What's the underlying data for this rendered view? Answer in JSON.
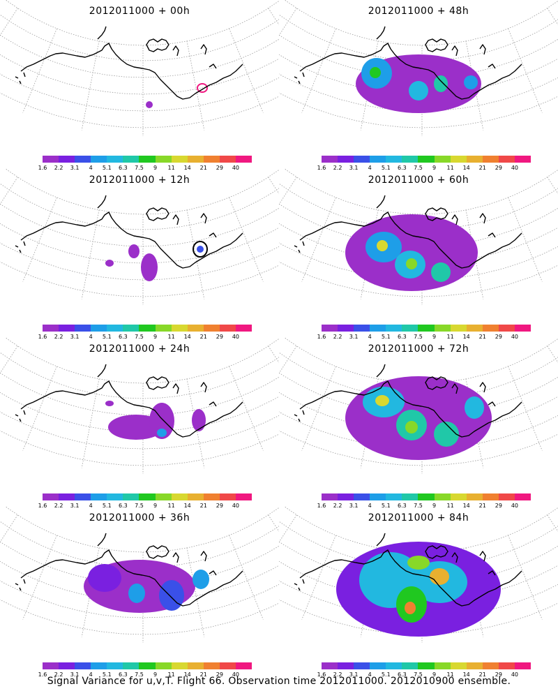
{
  "colorbar": {
    "colors": [
      "#9b2fc9",
      "#7a20e0",
      "#3a50e8",
      "#1e9ee8",
      "#22b8e0",
      "#20c8a8",
      "#20c820",
      "#88d828",
      "#d8d830",
      "#e8b030",
      "#f08030",
      "#f04848",
      "#f01880"
    ],
    "labels": [
      "1.6",
      "2.2",
      "3.1",
      "4",
      "5.1",
      "6.3",
      "7.5",
      "9",
      "11",
      "14",
      "21",
      "29",
      "40"
    ]
  },
  "panels": [
    {
      "title": "2012011000 + 00h"
    },
    {
      "title": "2012011000 + 48h"
    },
    {
      "title": "2012011000 + 12h"
    },
    {
      "title": "2012011000 + 60h"
    },
    {
      "title": "2012011000 + 24h"
    },
    {
      "title": "2012011000 + 72h"
    },
    {
      "title": "2012011000 + 36h"
    },
    {
      "title": "2012011000 + 84h"
    }
  ],
  "footer": "Signal Variance for u,v,T. Flight 66. Observation time 2012011000. 2012010900 ensemble."
}
